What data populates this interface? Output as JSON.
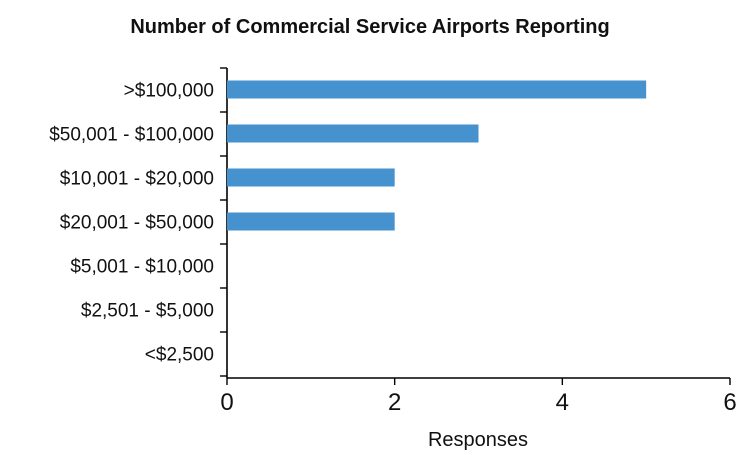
{
  "chart_data": {
    "type": "bar",
    "orientation": "horizontal",
    "title": "Number of Commercial Service Airports Reporting",
    "categories": [
      ">$100,000",
      "$50,001 - $100,000",
      "$10,001 - $20,000",
      "$20,001 - $50,000",
      "$5,001 - $10,000",
      "$2,501 - $5,000",
      "<$2,500"
    ],
    "values": [
      5,
      3,
      2,
      2,
      0,
      0,
      0
    ],
    "xlabel": "Responses",
    "ylabel": "",
    "xlim": [
      0,
      6
    ],
    "x_ticks": [
      0,
      2,
      4,
      6
    ],
    "grid": false,
    "bar_color": "#4592cf"
  }
}
